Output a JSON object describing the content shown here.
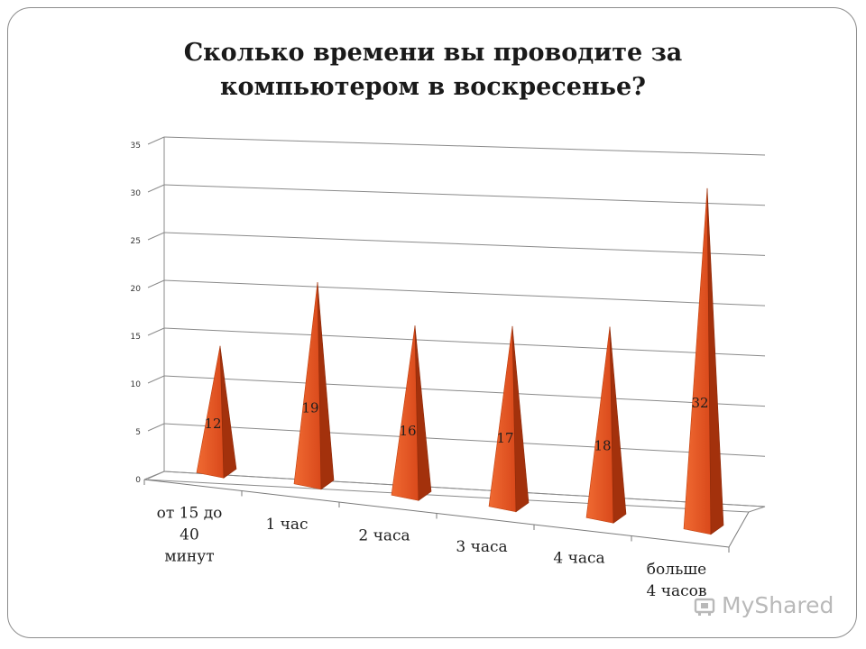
{
  "title": "Сколько времени вы проводите  за компьютером  в воскресенье?",
  "watermark": "MyShared",
  "chart_data": {
    "type": "bar",
    "bar_shape": "3d-pyramid",
    "categories": [
      "от 15 до 40 минут",
      "1 час",
      "2 часа",
      "3 часа",
      "4 часа",
      "больше 4 часов"
    ],
    "values": [
      12,
      19,
      16,
      17,
      18,
      32
    ],
    "ylim": [
      0,
      35
    ],
    "yticks": [
      0,
      5,
      10,
      15,
      20,
      25,
      30,
      35
    ],
    "grid": true,
    "legend": "none",
    "bar_color": "#e0501e"
  }
}
